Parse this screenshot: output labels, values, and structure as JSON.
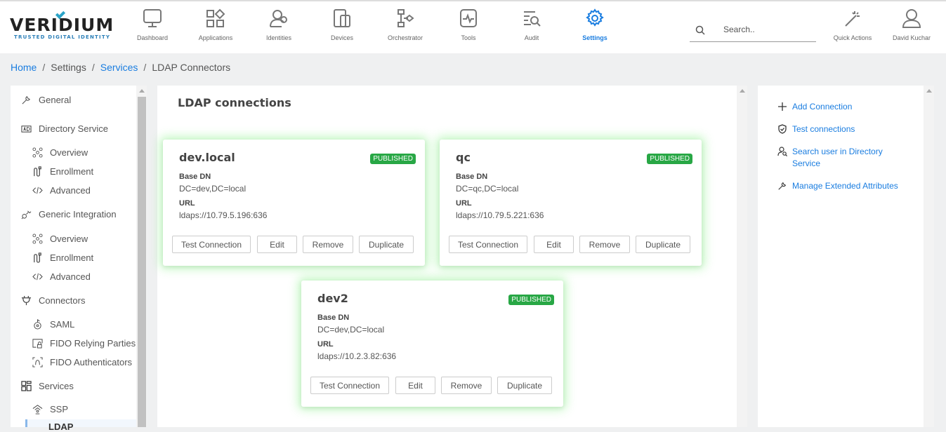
{
  "header": {
    "logo": "VERIDIUM",
    "logo_tagline": "TRUSTED DIGITAL IDENTITY",
    "nav": [
      {
        "label": "Dashboard",
        "icon": "monitor-icon"
      },
      {
        "label": "Applications",
        "icon": "apps-icon"
      },
      {
        "label": "Identities",
        "icon": "users-icon"
      },
      {
        "label": "Devices",
        "icon": "devices-icon"
      },
      {
        "label": "Orchestrator",
        "icon": "flow-icon"
      },
      {
        "label": "Tools",
        "icon": "tools-icon"
      },
      {
        "label": "Audit",
        "icon": "audit-icon"
      },
      {
        "label": "Settings",
        "icon": "gear-icon",
        "active": true
      }
    ],
    "search_placeholder": "Search..",
    "quick_actions": "Quick Actions",
    "user": "David Kuchar"
  },
  "breadcrumb": [
    "Home",
    "Settings",
    "Services",
    "LDAP Connectors"
  ],
  "sidebar": {
    "items": [
      {
        "label": "General"
      },
      {
        "label": "Directory Service"
      },
      {
        "label": "Overview"
      },
      {
        "label": "Enrollment"
      },
      {
        "label": "Advanced"
      },
      {
        "label": "Generic Integration"
      },
      {
        "label": "Overview"
      },
      {
        "label": "Enrollment"
      },
      {
        "label": "Advanced"
      },
      {
        "label": "Connectors"
      },
      {
        "label": "SAML"
      },
      {
        "label": "FIDO Relying Parties"
      },
      {
        "label": "FIDO Authenticators"
      },
      {
        "label": "Services"
      },
      {
        "label": "SSP"
      },
      {
        "label": "LDAP",
        "active": true
      }
    ]
  },
  "main": {
    "title": "LDAP connections",
    "labels": {
      "base_dn": "Base DN",
      "url": "URL",
      "status": "PUBLISHED"
    },
    "buttons": {
      "test": "Test Connection",
      "edit": "Edit",
      "remove": "Remove",
      "duplicate": "Duplicate"
    },
    "connections": [
      {
        "name": "dev.local",
        "base_dn": "DC=dev,DC=local",
        "url": "ldaps://10.79.5.196:636"
      },
      {
        "name": "qc",
        "base_dn": "DC=qc,DC=local",
        "url": "ldaps://10.79.5.221:636"
      },
      {
        "name": "dev2",
        "base_dn": "DC=dev,DC=local",
        "url": "ldaps://10.2.3.82:636"
      }
    ]
  },
  "actions": [
    "Add Connection",
    "Test connections",
    "Search user in Directory Service",
    "Manage Extended Attributes"
  ],
  "colors": {
    "accent": "#1a7de0",
    "published": "#28a745",
    "glow": "#78f078"
  }
}
